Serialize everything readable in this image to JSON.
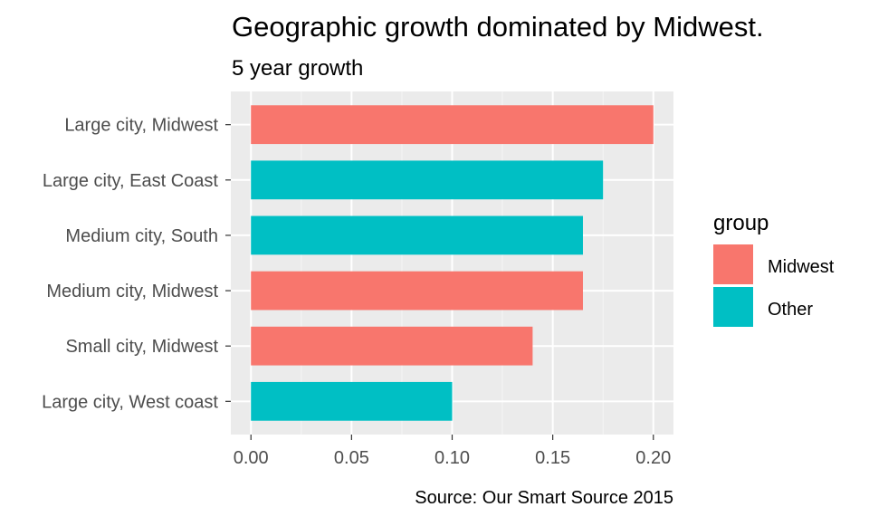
{
  "chart_data": {
    "type": "bar",
    "orientation": "horizontal",
    "title": "Geographic growth dominated by Midwest.",
    "subtitle": "5 year growth",
    "caption": "Source: Our Smart Source 2015",
    "xlabel": "",
    "ylabel": "",
    "xlim": [
      -0.01,
      0.21
    ],
    "x_ticks": [
      "0.00",
      "0.05",
      "0.10",
      "0.15",
      "0.20"
    ],
    "x_tick_values": [
      0.0,
      0.05,
      0.1,
      0.15,
      0.2
    ],
    "grid": true,
    "legend": {
      "title": "group",
      "position": "right",
      "entries": [
        {
          "name": "Midwest",
          "color": "#F8766D"
        },
        {
          "name": "Other",
          "color": "#00BFC4"
        }
      ]
    },
    "categories": [
      "Large city, Midwest",
      "Large city, East Coast",
      "Medium city, South",
      "Medium city, Midwest",
      "Small city, Midwest",
      "Large city, West coast"
    ],
    "values": [
      0.2,
      0.175,
      0.165,
      0.165,
      0.14,
      0.1
    ],
    "groups": [
      "Midwest",
      "Other",
      "Other",
      "Midwest",
      "Midwest",
      "Other"
    ]
  },
  "colors": {
    "panel_background": "#EBEBEB",
    "grid_major": "#FFFFFF",
    "grid_minor": "#F5F5F5",
    "axis_text": "#4D4D4D",
    "tick_mark": "#333333"
  }
}
